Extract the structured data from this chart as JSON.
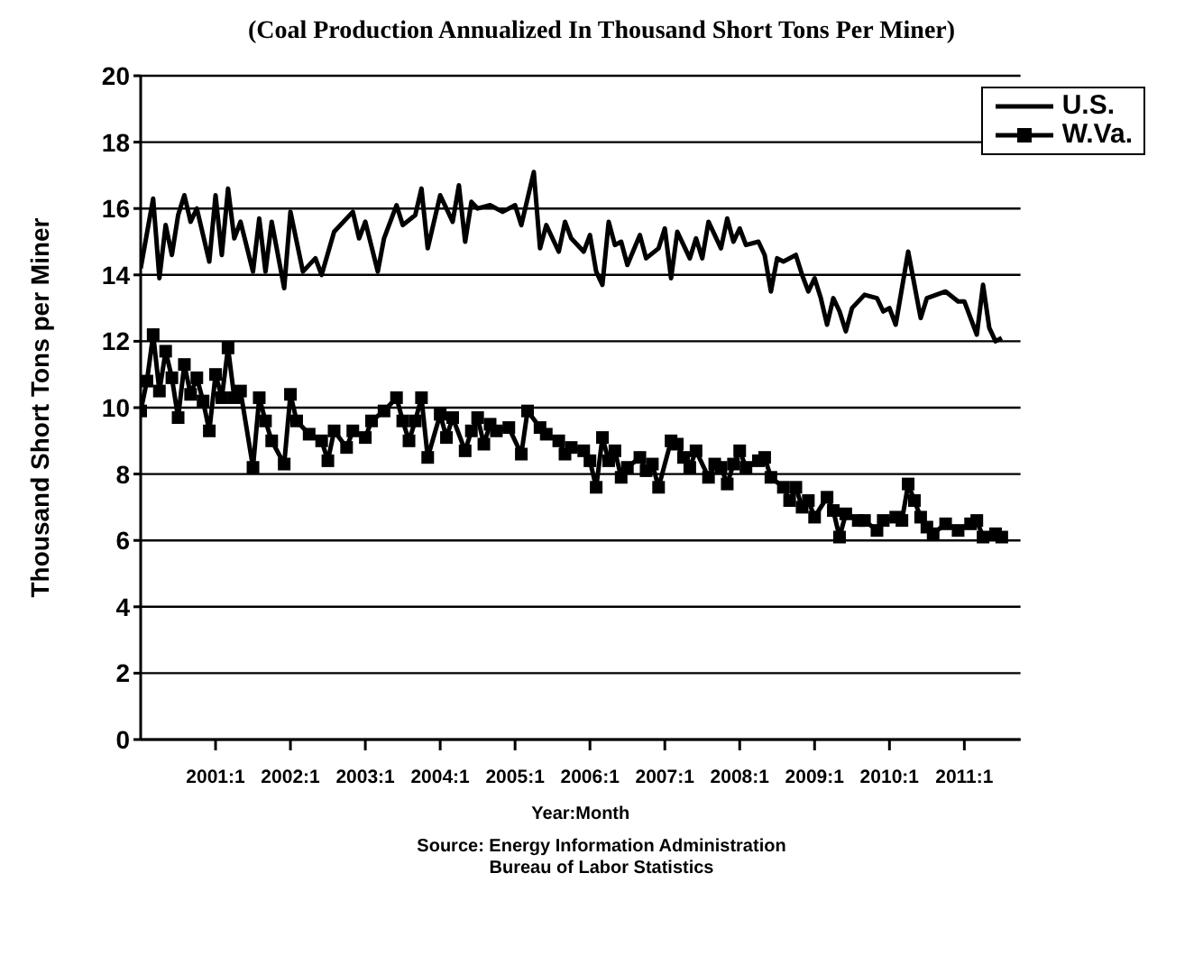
{
  "chart_data": {
    "type": "line",
    "title": "(Coal Production Annualized In Thousand Short Tons Per Miner)",
    "xlabel": "Year:Month",
    "ylabel": "Thousand Short Tons per Miner",
    "annotations": [
      "Source: Energy Information Administration",
      "Bureau of Labor Statistics"
    ],
    "xlim": [
      "2000-01",
      "2011-10"
    ],
    "xticks": [
      {
        "value": "2001-01",
        "label": "2001:1"
      },
      {
        "value": "2002-01",
        "label": "2002:1"
      },
      {
        "value": "2003-01",
        "label": "2003:1"
      },
      {
        "value": "2004-01",
        "label": "2004:1"
      },
      {
        "value": "2005-01",
        "label": "2005:1"
      },
      {
        "value": "2006-01",
        "label": "2006:1"
      },
      {
        "value": "2007-01",
        "label": "2007:1"
      },
      {
        "value": "2008-01",
        "label": "2008:1"
      },
      {
        "value": "2009-01",
        "label": "2009:1"
      },
      {
        "value": "2010-01",
        "label": "2010:1"
      },
      {
        "value": "2011-01",
        "label": "2011:1"
      }
    ],
    "ylim": [
      0,
      20
    ],
    "yticks": [
      0,
      2,
      4,
      6,
      8,
      10,
      12,
      14,
      16,
      18,
      20
    ],
    "grid": "y",
    "legend": "top right",
    "line_style": "solid",
    "series": [
      {
        "name": "U.S.",
        "color": "#000000",
        "marker": "none",
        "x": [
          "2000-01",
          "2000-03",
          "2000-04",
          "2000-05",
          "2000-06",
          "2000-07",
          "2000-08",
          "2000-09",
          "2000-10",
          "2000-12",
          "2001-01",
          "2001-02",
          "2001-03",
          "2001-04",
          "2001-05",
          "2001-07",
          "2001-08",
          "2001-09",
          "2001-10",
          "2001-12",
          "2002-01",
          "2002-03",
          "2002-05",
          "2002-06",
          "2002-08",
          "2002-11",
          "2002-12",
          "2003-01",
          "2003-03",
          "2003-04",
          "2003-06",
          "2003-07",
          "2003-09",
          "2003-10",
          "2003-11",
          "2004-01",
          "2004-03",
          "2004-04",
          "2004-05",
          "2004-06",
          "2004-07",
          "2004-09",
          "2004-11",
          "2005-01",
          "2005-02",
          "2005-04",
          "2005-05",
          "2005-06",
          "2005-08",
          "2005-09",
          "2005-10",
          "2005-12",
          "2006-01",
          "2006-02",
          "2006-03",
          "2006-04",
          "2006-05",
          "2006-06",
          "2006-07",
          "2006-09",
          "2006-10",
          "2006-12",
          "2007-01",
          "2007-02",
          "2007-03",
          "2007-05",
          "2007-06",
          "2007-07",
          "2007-08",
          "2007-10",
          "2007-11",
          "2007-12",
          "2008-01",
          "2008-02",
          "2008-04",
          "2008-05",
          "2008-06",
          "2008-07",
          "2008-08",
          "2008-10",
          "2008-11",
          "2008-12",
          "2009-01",
          "2009-02",
          "2009-03",
          "2009-04",
          "2009-05",
          "2009-06",
          "2009-07",
          "2009-09",
          "2009-11",
          "2009-12",
          "2010-01",
          "2010-02",
          "2010-04",
          "2010-06",
          "2010-07",
          "2010-10",
          "2010-12",
          "2011-01",
          "2011-03",
          "2011-04",
          "2011-05",
          "2011-06",
          "2011-07"
        ],
        "values": [
          14.2,
          16.3,
          13.9,
          15.5,
          14.6,
          15.8,
          16.4,
          15.6,
          16.0,
          14.4,
          16.4,
          14.6,
          16.6,
          15.1,
          15.6,
          14.1,
          15.7,
          14.1,
          15.6,
          13.6,
          15.9,
          14.1,
          14.5,
          14.0,
          15.3,
          15.9,
          15.1,
          15.6,
          14.1,
          15.1,
          16.1,
          15.5,
          15.8,
          16.6,
          14.8,
          16.4,
          15.6,
          16.7,
          15.0,
          16.2,
          16.0,
          16.1,
          15.9,
          16.1,
          15.5,
          17.1,
          14.8,
          15.5,
          14.7,
          15.6,
          15.1,
          14.7,
          15.2,
          14.1,
          13.7,
          15.6,
          14.9,
          15.0,
          14.3,
          15.2,
          14.5,
          14.8,
          15.4,
          13.9,
          15.3,
          14.5,
          15.1,
          14.5,
          15.6,
          14.8,
          15.7,
          15.0,
          15.4,
          14.9,
          15.0,
          14.6,
          13.5,
          14.5,
          14.4,
          14.6,
          14.0,
          13.5,
          13.9,
          13.3,
          12.5,
          13.3,
          12.9,
          12.3,
          13.0,
          13.4,
          13.3,
          12.9,
          13.0,
          12.5,
          14.7,
          12.7,
          13.3,
          13.5,
          13.2,
          13.2,
          12.2,
          13.7,
          12.4,
          12.0,
          12.1
        ]
      },
      {
        "name": "W.Va.",
        "color": "#000000",
        "marker": "square",
        "x": [
          "2000-01",
          "2000-02",
          "2000-03",
          "2000-04",
          "2000-05",
          "2000-06",
          "2000-07",
          "2000-08",
          "2000-09",
          "2000-10",
          "2000-11",
          "2000-12",
          "2001-01",
          "2001-02",
          "2001-03",
          "2001-04",
          "2001-05",
          "2001-07",
          "2001-08",
          "2001-09",
          "2001-10",
          "2001-12",
          "2002-01",
          "2002-02",
          "2002-04",
          "2002-06",
          "2002-07",
          "2002-08",
          "2002-10",
          "2002-11",
          "2003-01",
          "2003-02",
          "2003-04",
          "2003-06",
          "2003-07",
          "2003-08",
          "2003-09",
          "2003-10",
          "2003-11",
          "2004-01",
          "2004-02",
          "2004-03",
          "2004-05",
          "2004-06",
          "2004-07",
          "2004-08",
          "2004-09",
          "2004-10",
          "2004-12",
          "2005-02",
          "2005-03",
          "2005-05",
          "2005-06",
          "2005-08",
          "2005-09",
          "2005-10",
          "2005-12",
          "2006-01",
          "2006-02",
          "2006-03",
          "2006-04",
          "2006-05",
          "2006-06",
          "2006-07",
          "2006-09",
          "2006-10",
          "2006-11",
          "2006-12",
          "2007-02",
          "2007-03",
          "2007-04",
          "2007-05",
          "2007-06",
          "2007-08",
          "2007-09",
          "2007-10",
          "2007-11",
          "2007-12",
          "2008-01",
          "2008-02",
          "2008-04",
          "2008-05",
          "2008-06",
          "2008-08",
          "2008-09",
          "2008-10",
          "2008-11",
          "2008-12",
          "2009-01",
          "2009-03",
          "2009-04",
          "2009-05",
          "2009-06",
          "2009-08",
          "2009-09",
          "2009-11",
          "2009-12",
          "2010-02",
          "2010-03",
          "2010-04",
          "2010-05",
          "2010-06",
          "2010-07",
          "2010-08",
          "2010-10",
          "2010-12",
          "2011-02",
          "2011-03",
          "2011-04",
          "2011-06",
          "2011-07"
        ],
        "values": [
          9.9,
          10.8,
          12.2,
          10.5,
          11.7,
          10.9,
          9.7,
          11.3,
          10.4,
          10.9,
          10.2,
          9.3,
          11.0,
          10.3,
          11.8,
          10.3,
          10.5,
          8.2,
          10.3,
          9.6,
          9.0,
          8.3,
          10.4,
          9.6,
          9.2,
          9.0,
          8.4,
          9.3,
          8.8,
          9.3,
          9.1,
          9.6,
          9.9,
          10.3,
          9.6,
          9.0,
          9.6,
          10.3,
          8.5,
          9.8,
          9.1,
          9.7,
          8.7,
          9.3,
          9.7,
          8.9,
          9.5,
          9.3,
          9.4,
          8.6,
          9.9,
          9.4,
          9.2,
          9.0,
          8.6,
          8.8,
          8.7,
          8.4,
          7.6,
          9.1,
          8.4,
          8.7,
          7.9,
          8.2,
          8.5,
          8.1,
          8.3,
          7.6,
          9.0,
          8.9,
          8.5,
          8.2,
          8.7,
          7.9,
          8.3,
          8.2,
          7.7,
          8.3,
          8.7,
          8.2,
          8.4,
          8.5,
          7.9,
          7.6,
          7.2,
          7.6,
          7.0,
          7.2,
          6.7,
          7.3,
          6.9,
          6.1,
          6.8,
          6.6,
          6.6,
          6.3,
          6.6,
          6.7,
          6.6,
          7.7,
          7.2,
          6.7,
          6.4,
          6.2,
          6.5,
          6.3,
          6.5,
          6.6,
          6.1,
          6.2,
          6.1
        ]
      }
    ]
  }
}
